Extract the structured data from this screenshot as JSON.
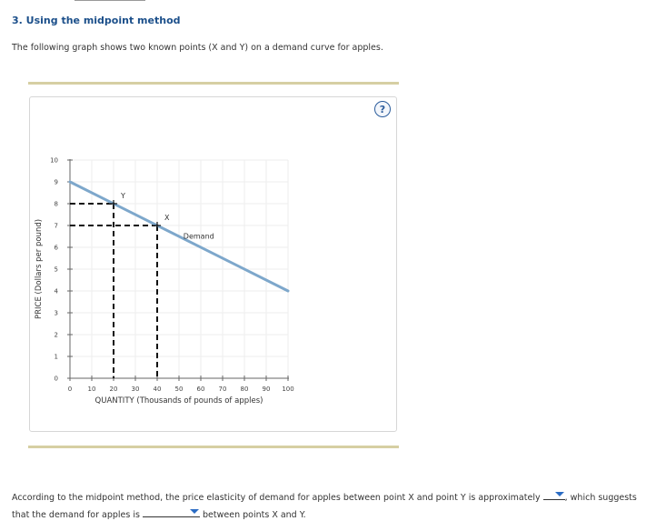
{
  "section": {
    "title": "3. Using the midpoint method"
  },
  "intro": {
    "text": "The following graph shows two known points (X and Y) on a demand curve for apples."
  },
  "help": {
    "label": "?"
  },
  "chart_data": {
    "type": "line",
    "xlabel": "QUANTITY (Thousands of pounds of apples)",
    "ylabel": "PRICE (Dollars per pound)",
    "xlim": [
      0,
      100
    ],
    "ylim": [
      0,
      10
    ],
    "x_ticks": [
      "0",
      "10",
      "20",
      "30",
      "40",
      "50",
      "60",
      "70",
      "80",
      "90",
      "100"
    ],
    "y_ticks": [
      "0",
      "1",
      "2",
      "3",
      "4",
      "5",
      "6",
      "7",
      "8",
      "9",
      "10"
    ],
    "grid": true,
    "series": [
      {
        "name": "Demand",
        "x": [
          0,
          100
        ],
        "y": [
          9,
          4
        ],
        "color": "#7da7cb"
      }
    ],
    "points": [
      {
        "label": "Y",
        "x": 20,
        "y": 8
      },
      {
        "label": "X",
        "x": 40,
        "y": 7
      }
    ]
  },
  "question": {
    "part1": "According to the midpoint method, the price elasticity of demand for apples between point X and point Y is approximately",
    "part2": ", which suggests that the demand for apples is",
    "part3": "between points X and Y.",
    "dropdown1_value": "",
    "dropdown2_value": ""
  }
}
